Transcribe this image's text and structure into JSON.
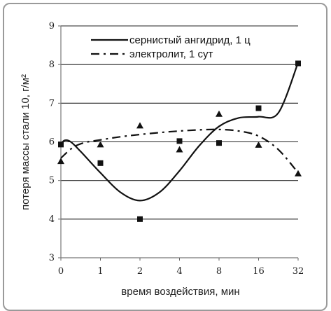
{
  "chart_data": {
    "type": "line",
    "xlabel": "время воздействия, мин",
    "ylabel": "потеря массы стали 10, г/м²",
    "categories": [
      "0",
      "1",
      "2",
      "4",
      "8",
      "16",
      "32"
    ],
    "ylim": [
      3,
      9
    ],
    "yticks": [
      "3",
      "4",
      "5",
      "6",
      "7",
      "8",
      "9"
    ],
    "grid": "horizontal",
    "legend_position": "top-right",
    "series": [
      {
        "name": "сернистый ангидрид, 1 ц",
        "marker": "square",
        "line_style": "solid",
        "values": [
          5.93,
          5.45,
          4.0,
          6.02,
          5.97,
          6.87,
          8.03
        ],
        "trend": [
          [
            0,
            5.95
          ],
          [
            0.1,
            6.04
          ],
          [
            0.25,
            6.0
          ],
          [
            0.5,
            5.75
          ],
          [
            1,
            5.2
          ],
          [
            1.5,
            4.7
          ],
          [
            2,
            4.48
          ],
          [
            2.5,
            4.7
          ],
          [
            3,
            5.25
          ],
          [
            3.5,
            5.9
          ],
          [
            4,
            6.4
          ],
          [
            4.5,
            6.62
          ],
          [
            5,
            6.65
          ],
          [
            5.5,
            6.75
          ],
          [
            6,
            8.05
          ]
        ]
      },
      {
        "name": "электролит, 1 сут",
        "marker": "triangle",
        "line_style": "dash-dot",
        "values": [
          5.5,
          5.93,
          6.42,
          5.8,
          6.72,
          5.92,
          5.18
        ],
        "trend": [
          [
            0,
            5.58
          ],
          [
            0.3,
            5.85
          ],
          [
            0.6,
            5.98
          ],
          [
            1,
            6.05
          ],
          [
            1.5,
            6.13
          ],
          [
            2,
            6.19
          ],
          [
            2.5,
            6.24
          ],
          [
            3,
            6.28
          ],
          [
            3.5,
            6.31
          ],
          [
            4,
            6.32
          ],
          [
            4.5,
            6.28
          ],
          [
            5,
            6.15
          ],
          [
            5.5,
            5.8
          ],
          [
            6,
            5.2
          ]
        ]
      }
    ]
  }
}
